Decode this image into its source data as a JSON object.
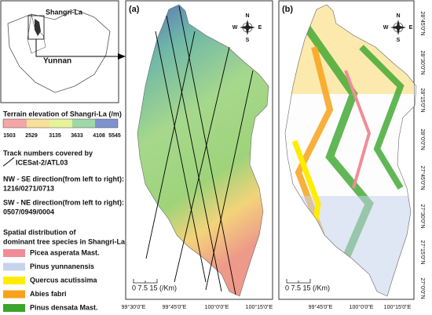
{
  "inset": {
    "region": "Shangri-La",
    "province": "Yunnan"
  },
  "elevation_legend": {
    "title": "Terrain elevation of Shangri-La (/m)",
    "ticks": [
      "1503",
      "2529",
      "3135",
      "3633",
      "4108",
      "5545"
    ]
  },
  "tracks": {
    "title_line1": "Track numbers covered by",
    "product": "ICESat-2/ATL03",
    "nw_se_label": "NW - SE direction(from left to right):",
    "nw_se_tracks": "1216/0271/0713",
    "sw_ne_label": "SW - NE direction(from left to right):",
    "sw_ne_tracks": "0507/0949/0004"
  },
  "species_legend": {
    "title_line1": "Spatial distribution of",
    "title_line2": "dominant tree species in Shangri-La",
    "items": [
      {
        "name": "Picea asperata Mast.",
        "color": "#f08c96"
      },
      {
        "name": "Pinus yunnanensis",
        "color": "#c6d3ec"
      },
      {
        "name": "Quercus acutissima",
        "color": "#ffec00"
      },
      {
        "name": "Abies fabri",
        "color": "#f7a21a"
      },
      {
        "name": "Pinus densata Mast.",
        "color": "#3aa52a"
      }
    ]
  },
  "panels": {
    "a": "(a)",
    "b": "(b)"
  },
  "compass": {
    "n": "N",
    "s": "S",
    "w": "W",
    "e": "E"
  },
  "scale_bar": "0  7.5 15 (/Km)",
  "longitudes": [
    "99°30'0\"E",
    "99°45'0\"E",
    "100°0'0\"E",
    "100°15'0\"E"
  ],
  "latitudes": [
    "28°45'0\"N",
    "28°30'0\"N",
    "28°15'0\"N",
    "28°0'0\"N",
    "27°45'0\"N",
    "27°30'0\"N",
    "27°15'0\"N",
    "27°0'0\"N"
  ]
}
